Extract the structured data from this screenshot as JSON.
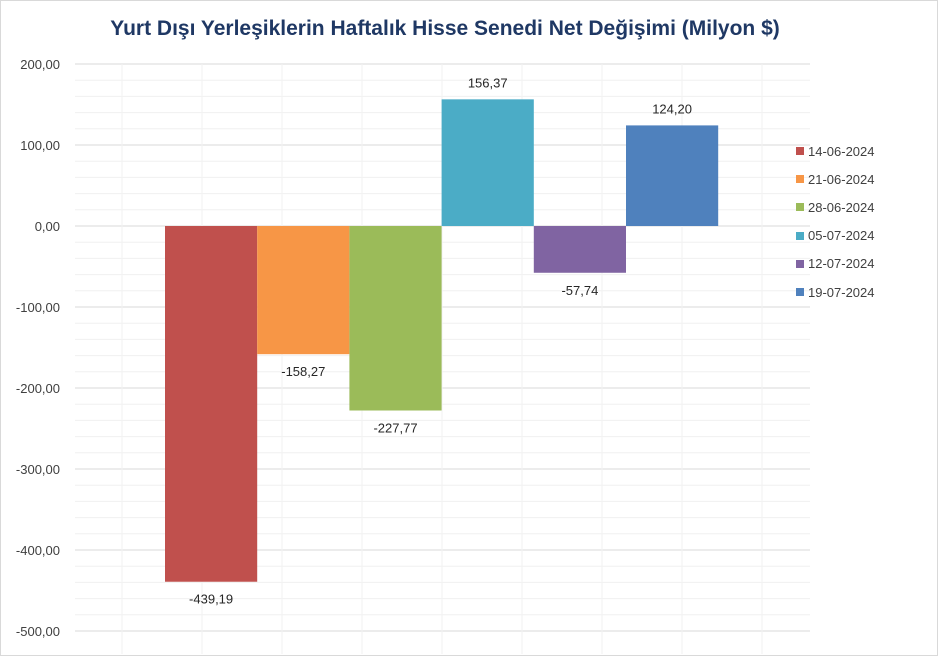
{
  "chart_data": {
    "type": "bar",
    "title": "Yurt Dışı Yerleşiklerin Haftalık Hisse Senedi Net Değişimi (Milyon $)",
    "xlabel": "",
    "ylabel": "",
    "ylim": [
      -500,
      200
    ],
    "yticks": [
      "200,00",
      "100,00",
      "0,00",
      "-100,00",
      "-200,00",
      "-300,00",
      "-400,00",
      "-500,00"
    ],
    "ytick_values": [
      200,
      100,
      0,
      -100,
      -200,
      -300,
      -400,
      -500
    ],
    "grid": true,
    "legend_position": "right",
    "series": [
      {
        "name": "14-06-2024",
        "value": -439.19,
        "label": "-439,19",
        "color": "#c0504d"
      },
      {
        "name": "21-06-2024",
        "value": -158.27,
        "label": "-158,27",
        "color": "#f79646"
      },
      {
        "name": "28-06-2024",
        "value": -227.77,
        "label": "-227,77",
        "color": "#9bbb59"
      },
      {
        "name": "05-07-2024",
        "value": 156.37,
        "label": "156,37",
        "color": "#4bacc6"
      },
      {
        "name": "12-07-2024",
        "value": -57.74,
        "label": "-57,74",
        "color": "#8064a2"
      },
      {
        "name": "19-07-2024",
        "value": 124.2,
        "label": "124,20",
        "color": "#4f81bd"
      }
    ]
  }
}
